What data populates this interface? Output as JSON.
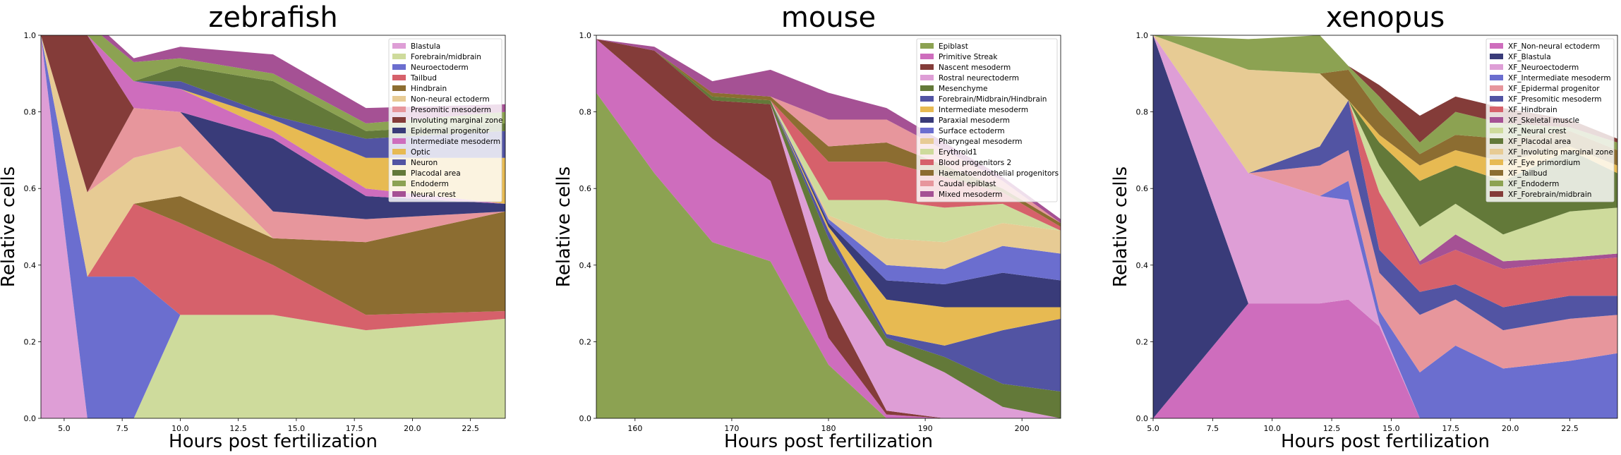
{
  "chart_data": [
    {
      "type": "area",
      "stacked": true,
      "title": "zebrafish",
      "xlabel": "Hours post fertilization",
      "ylabel": "Relative cells",
      "xlim": [
        4,
        24
      ],
      "ylim": [
        0,
        1.0
      ],
      "xticks": [
        5.0,
        7.5,
        10.0,
        12.5,
        15.0,
        17.5,
        20.0,
        22.5
      ],
      "xtick_labels": [
        "5.0",
        "7.5",
        "10.0",
        "12.5",
        "15.0",
        "17.5",
        "20.0",
        "22.5"
      ],
      "yticks": [
        0.0,
        0.2,
        0.4,
        0.6,
        0.8,
        1.0
      ],
      "ytick_labels": [
        "0.0",
        "0.2",
        "0.4",
        "0.6",
        "0.8",
        "1.0"
      ],
      "legend_position": "top-right",
      "x": [
        4,
        6,
        8,
        10,
        14,
        18,
        24
      ],
      "series": [
        {
          "name": "Blastula",
          "color": "#de9ed6",
          "values": [
            1.0,
            0,
            0,
            0,
            0,
            0,
            0
          ]
        },
        {
          "name": "Forebrain/midbrain",
          "color": "#cedb9c",
          "values": [
            0,
            0,
            0,
            0.27,
            0.27,
            0.23,
            0.26
          ]
        },
        {
          "name": "Neuroectoderm",
          "color": "#6b6ecf",
          "values": [
            0,
            0.37,
            0.37,
            0,
            0,
            0,
            0
          ]
        },
        {
          "name": "Tailbud",
          "color": "#d6616b",
          "values": [
            0,
            0,
            0.19,
            0.24,
            0.13,
            0.04,
            0.02
          ]
        },
        {
          "name": "Hindbrain",
          "color": "#8c6d31",
          "values": [
            0,
            0,
            0,
            0.07,
            0.07,
            0.19,
            0.26
          ]
        },
        {
          "name": "Non-neural ectoderm",
          "color": "#e7cb94",
          "values": [
            0,
            0.22,
            0.12,
            0.13,
            0,
            0,
            0
          ]
        },
        {
          "name": "Presomitic mesoderm",
          "color": "#e7969c",
          "values": [
            0,
            0,
            0.13,
            0.09,
            0.07,
            0.06,
            0
          ]
        },
        {
          "name": "Involuting marginal zone",
          "color": "#843c39",
          "values": [
            0,
            0.41,
            0,
            0,
            0,
            0,
            0
          ]
        },
        {
          "name": "Epidermal progenitor",
          "color": "#393b79",
          "values": [
            0,
            0,
            0,
            0,
            0.19,
            0.06,
            0.02
          ]
        },
        {
          "name": "Intermediate mesoderm",
          "color": "#ce6dbd",
          "values": [
            0,
            0,
            0.07,
            0.06,
            0.02,
            0.02,
            0
          ]
        },
        {
          "name": "Optic",
          "color": "#e7ba52",
          "values": [
            0,
            0,
            0,
            0,
            0.03,
            0.08,
            0.12
          ]
        },
        {
          "name": "Neuron",
          "color": "#5254a3",
          "values": [
            0,
            0,
            0,
            0.02,
            0.01,
            0.05,
            0.07
          ]
        },
        {
          "name": "Placodal area",
          "color": "#637939",
          "values": [
            0,
            0,
            0,
            0.04,
            0.09,
            0.02,
            0.02
          ]
        },
        {
          "name": "Endoderm",
          "color": "#8ca252",
          "values": [
            0,
            0.03,
            0.05,
            0.02,
            0.02,
            0.02,
            0.03
          ]
        },
        {
          "name": "Neural crest",
          "color": "#a55194",
          "values": [
            0,
            0.02,
            0.01,
            0.03,
            0.05,
            0.04,
            0.02
          ]
        }
      ]
    },
    {
      "type": "area",
      "stacked": true,
      "title": "mouse",
      "xlabel": "Hours post fertilization",
      "ylabel": "Relative cells",
      "xlim": [
        156,
        204
      ],
      "ylim": [
        0,
        1.0
      ],
      "xticks": [
        160,
        170,
        180,
        190,
        200
      ],
      "xtick_labels": [
        "160",
        "170",
        "180",
        "190",
        "200"
      ],
      "yticks": [
        0.0,
        0.2,
        0.4,
        0.6,
        0.8,
        1.0
      ],
      "ytick_labels": [
        "0.0",
        "0.2",
        "0.4",
        "0.6",
        "0.8",
        "1.0"
      ],
      "legend_position": "top-right",
      "x": [
        156,
        162,
        168,
        174,
        180,
        186,
        192,
        198,
        204
      ],
      "series": [
        {
          "name": "Epiblast",
          "color": "#8ca252",
          "values": [
            0.85,
            0.64,
            0.46,
            0.41,
            0.14,
            0,
            0,
            0,
            0
          ]
        },
        {
          "name": "Primitive Streak",
          "color": "#ce6dbd",
          "values": [
            0.14,
            0.22,
            0.27,
            0.21,
            0.07,
            0.01,
            0,
            0,
            0
          ]
        },
        {
          "name": "Nascent mesoderm",
          "color": "#843c39",
          "values": [
            0,
            0.1,
            0.1,
            0.2,
            0.1,
            0.01,
            0,
            0,
            0
          ]
        },
        {
          "name": "Rostral neurectoderm",
          "color": "#de9ed6",
          "values": [
            0,
            0,
            0,
            0,
            0.1,
            0.17,
            0.12,
            0.03,
            0
          ]
        },
        {
          "name": "Mesenchyme",
          "color": "#637939",
          "values": [
            0,
            0,
            0.01,
            0.01,
            0.06,
            0.02,
            0.04,
            0.06,
            0.07
          ]
        },
        {
          "name": "Forebrain/Midbrain/Hindbrain",
          "color": "#5254a3",
          "values": [
            0,
            0,
            0,
            0,
            0.02,
            0.01,
            0.03,
            0.14,
            0.19
          ]
        },
        {
          "name": "Intermediate mesoderm",
          "color": "#e7ba52",
          "values": [
            0,
            0,
            0,
            0,
            0.01,
            0.09,
            0.1,
            0.06,
            0.03
          ]
        },
        {
          "name": "Paraxial mesoderm",
          "color": "#393b79",
          "values": [
            0,
            0,
            0,
            0,
            0.01,
            0.05,
            0.06,
            0.09,
            0.07
          ]
        },
        {
          "name": "Surface ectoderm",
          "color": "#6b6ecf",
          "values": [
            0,
            0,
            0,
            0,
            0.01,
            0.04,
            0.04,
            0.07,
            0.07
          ]
        },
        {
          "name": "Pharyngeal mesoderm",
          "color": "#e7cb94",
          "values": [
            0,
            0,
            0,
            0,
            0.01,
            0.07,
            0.07,
            0.06,
            0.06
          ]
        },
        {
          "name": "Erythroid1",
          "color": "#cedb9c",
          "values": [
            0,
            0,
            0,
            0,
            0.04,
            0.1,
            0.09,
            0.05,
            0
          ]
        },
        {
          "name": "Blood progenitors 2",
          "color": "#d6616b",
          "values": [
            0,
            0,
            0,
            0,
            0.1,
            0.1,
            0.08,
            0.03,
            0.01
          ]
        },
        {
          "name": "Haematoendothelial progenitors",
          "color": "#8c6d31",
          "values": [
            0,
            0,
            0.01,
            0.01,
            0.04,
            0.05,
            0.03,
            0.01,
            0.01
          ]
        },
        {
          "name": "Caudal epiblast",
          "color": "#e7969c",
          "values": [
            0,
            0,
            0,
            0,
            0.07,
            0.06,
            0.04,
            0.02,
            0
          ]
        },
        {
          "name": "Mixed mesoderm",
          "color": "#a55194",
          "values": [
            0,
            0.01,
            0.03,
            0.07,
            0.07,
            0.03,
            0.02,
            0.01,
            0.01
          ]
        }
      ]
    },
    {
      "type": "area",
      "stacked": true,
      "title": "xenopus",
      "xlabel": "Hours post fertilization",
      "ylabel": "Relative cells",
      "xlim": [
        5,
        24.5
      ],
      "ylim": [
        0,
        1.0
      ],
      "xticks": [
        5.0,
        7.5,
        10.0,
        12.5,
        15.0,
        17.5,
        20.0,
        22.5
      ],
      "xtick_labels": [
        "5.0",
        "7.5",
        "10.0",
        "12.5",
        "15.0",
        "17.5",
        "20.0",
        "22.5"
      ],
      "yticks": [
        0.0,
        0.2,
        0.4,
        0.6,
        0.8,
        1.0
      ],
      "ytick_labels": [
        "0.0",
        "0.2",
        "0.4",
        "0.6",
        "0.8",
        "1.0"
      ],
      "legend_position": "top-right",
      "x": [
        5,
        9,
        12,
        13.2,
        14.5,
        16.2,
        17.7,
        19.7,
        22.5,
        24.5
      ],
      "series": [
        {
          "name": "XF_Non-neural ectoderm",
          "color": "#ce6dbd",
          "values": [
            0,
            0.3,
            0.3,
            0.31,
            0.24,
            0,
            0,
            0,
            0,
            0
          ]
        },
        {
          "name": "XF_Blastula",
          "color": "#393b79",
          "values": [
            1.0,
            0,
            0,
            0,
            0,
            0,
            0,
            0,
            0,
            0
          ]
        },
        {
          "name": "XF_Neuroectoderm",
          "color": "#de9ed6",
          "values": [
            0,
            0.34,
            0.28,
            0.26,
            0.01,
            0,
            0,
            0,
            0,
            0
          ]
        },
        {
          "name": "XF_Intermediate mesoderm",
          "color": "#6b6ecf",
          "values": [
            0,
            0,
            0,
            0.05,
            0.03,
            0.12,
            0.19,
            0.13,
            0.15,
            0.17
          ]
        },
        {
          "name": "XF_Epidermal progenitor",
          "color": "#e7969c",
          "values": [
            0,
            0,
            0.08,
            0.08,
            0.1,
            0.15,
            0.12,
            0.1,
            0.11,
            0.1
          ]
        },
        {
          "name": "XF_Presomitic mesoderm",
          "color": "#5254a3",
          "values": [
            0,
            0,
            0.05,
            0.13,
            0.06,
            0.06,
            0.04,
            0.06,
            0.06,
            0.05
          ]
        },
        {
          "name": "XF_Hindbrain",
          "color": "#d6616b",
          "values": [
            0,
            0,
            0,
            0,
            0.15,
            0.07,
            0.09,
            0.1,
            0.09,
            0.1
          ]
        },
        {
          "name": "XF_Skeletal muscle",
          "color": "#a55194",
          "values": [
            0,
            0,
            0,
            0,
            0,
            0.01,
            0.04,
            0.02,
            0.01,
            0.01
          ]
        },
        {
          "name": "XF_Neural crest",
          "color": "#cedb9c",
          "values": [
            0,
            0,
            0,
            0,
            0.07,
            0.09,
            0.08,
            0.07,
            0.12,
            0.12
          ]
        },
        {
          "name": "XF_Placodal area",
          "color": "#637939",
          "values": [
            0,
            0,
            0,
            0,
            0.06,
            0.12,
            0.1,
            0.14,
            0.16,
            0.09
          ]
        },
        {
          "name": "XF_Involuting marginal zone",
          "color": "#e7cb94",
          "values": [
            0,
            0.27,
            0.19,
            0,
            0,
            0,
            0,
            0,
            0,
            0
          ]
        },
        {
          "name": "XF_Eye primordium",
          "color": "#e7ba52",
          "values": [
            0,
            0,
            0,
            0,
            0.02,
            0.04,
            0.04,
            0.05,
            0.01,
            0.02
          ]
        },
        {
          "name": "XF_Tailbud",
          "color": "#8c6d31",
          "values": [
            0,
            0,
            0,
            0.08,
            0.06,
            0.03,
            0.04,
            0.06,
            0.04,
            0.04
          ]
        },
        {
          "name": "XF_Endoderm",
          "color": "#8ca252",
          "values": [
            0,
            0.08,
            0.1,
            0.01,
            0.04,
            0.03,
            0.06,
            0.04,
            0.01,
            0.02
          ]
        },
        {
          "name": "XF_Forebrain/midbrain",
          "color": "#843c39",
          "values": [
            0,
            0,
            0,
            0,
            0.03,
            0.07,
            0.04,
            0.04,
            0.02,
            0.01
          ]
        }
      ]
    }
  ]
}
